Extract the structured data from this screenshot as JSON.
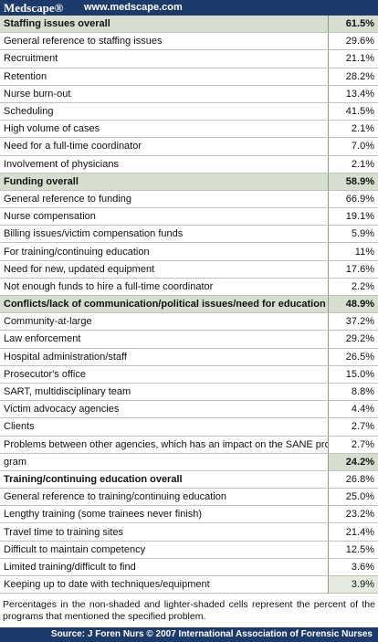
{
  "header": {
    "brand": "Medscape®",
    "url": "www.medscape.com"
  },
  "table": {
    "rows": [
      {
        "cells": [
          "Staffing issues overall",
          "61.5%"
        ],
        "style": "section"
      },
      {
        "cells": [
          "General reference to staffing issues",
          "29.6%"
        ]
      },
      {
        "cells": [
          "Recruitment",
          "21.1%"
        ]
      },
      {
        "cells": [
          "Retention",
          "28.2%"
        ]
      },
      {
        "cells": [
          "Nurse burn-out",
          "13.4%"
        ]
      },
      {
        "cells": [
          "Scheduling",
          "41.5%"
        ]
      },
      {
        "cells": [
          "High volume of cases",
          "2.1%"
        ]
      },
      {
        "cells": [
          "Need for a full-time coordinator",
          "7.0%"
        ]
      },
      {
        "cells": [
          "Involvement of physicians",
          "2.1%"
        ]
      },
      {
        "cells": [
          "Funding overall",
          "58.9%"
        ],
        "style": "section"
      },
      {
        "cells": [
          "General reference to funding",
          "66.9%"
        ]
      },
      {
        "cells": [
          "Nurse compensation",
          "19.1%"
        ]
      },
      {
        "cells": [
          "Billing issues/victim compensation funds",
          "5.9%"
        ]
      },
      {
        "cells": [
          "For training/continuing education",
          "11%"
        ]
      },
      {
        "cells": [
          "Need for new, updated equipment",
          "17.6%"
        ]
      },
      {
        "cells": [
          "Not enough funds to hire a full-time coordinator",
          "2.2%"
        ]
      },
      {
        "cells": [
          "Conflicts/lack of communication/political issues/need for education",
          "48.9%"
        ],
        "style": "section"
      },
      {
        "cells": [
          "Community-at-large",
          "37.2%"
        ]
      },
      {
        "cells": [
          "Law enforcement",
          "29.2%"
        ]
      },
      {
        "cells": [
          "Hospital administration/staff",
          "26.5%"
        ]
      },
      {
        "cells": [
          "Prosecutor's office",
          "15.0%"
        ]
      },
      {
        "cells": [
          "SART, multidisciplinary team",
          "8.8%"
        ]
      },
      {
        "cells": [
          "Victim advocacy agencies",
          "4.4%"
        ]
      },
      {
        "cells": [
          "Clients",
          "2.7%"
        ]
      },
      {
        "cells": [
          "Problems between other agencies, which has an impact on the SANE pro-",
          "2.7%"
        ]
      },
      {
        "cells": [
          "gram",
          "24.2%"
        ],
        "style": "valshade"
      },
      {
        "cells": [
          "Training/continuing education overall",
          "26.8%"
        ],
        "style": "bold"
      },
      {
        "cells": [
          "General reference to training/continuing education",
          "25.0%"
        ]
      },
      {
        "cells": [
          "Lengthy training (some trainees never finish)",
          "23.2%"
        ]
      },
      {
        "cells": [
          "Travel time to training sites",
          "21.4%"
        ]
      },
      {
        "cells": [
          "Difficult to maintain competency",
          "12.5%"
        ]
      },
      {
        "cells": [
          "Limited training/difficult to find",
          "3.6%"
        ]
      },
      {
        "cells": [
          "Keeping up to date with techniques/equipment",
          "3.9%"
        ],
        "style": "lightshade"
      }
    ]
  },
  "footnote": "Percentages in the non-shaded and lighter-shaded cells represent the percent of the programs that mentioned the specified problem.",
  "source": "Source: J Foren Nurs © 2007 International Association of Forensic Nurses"
}
